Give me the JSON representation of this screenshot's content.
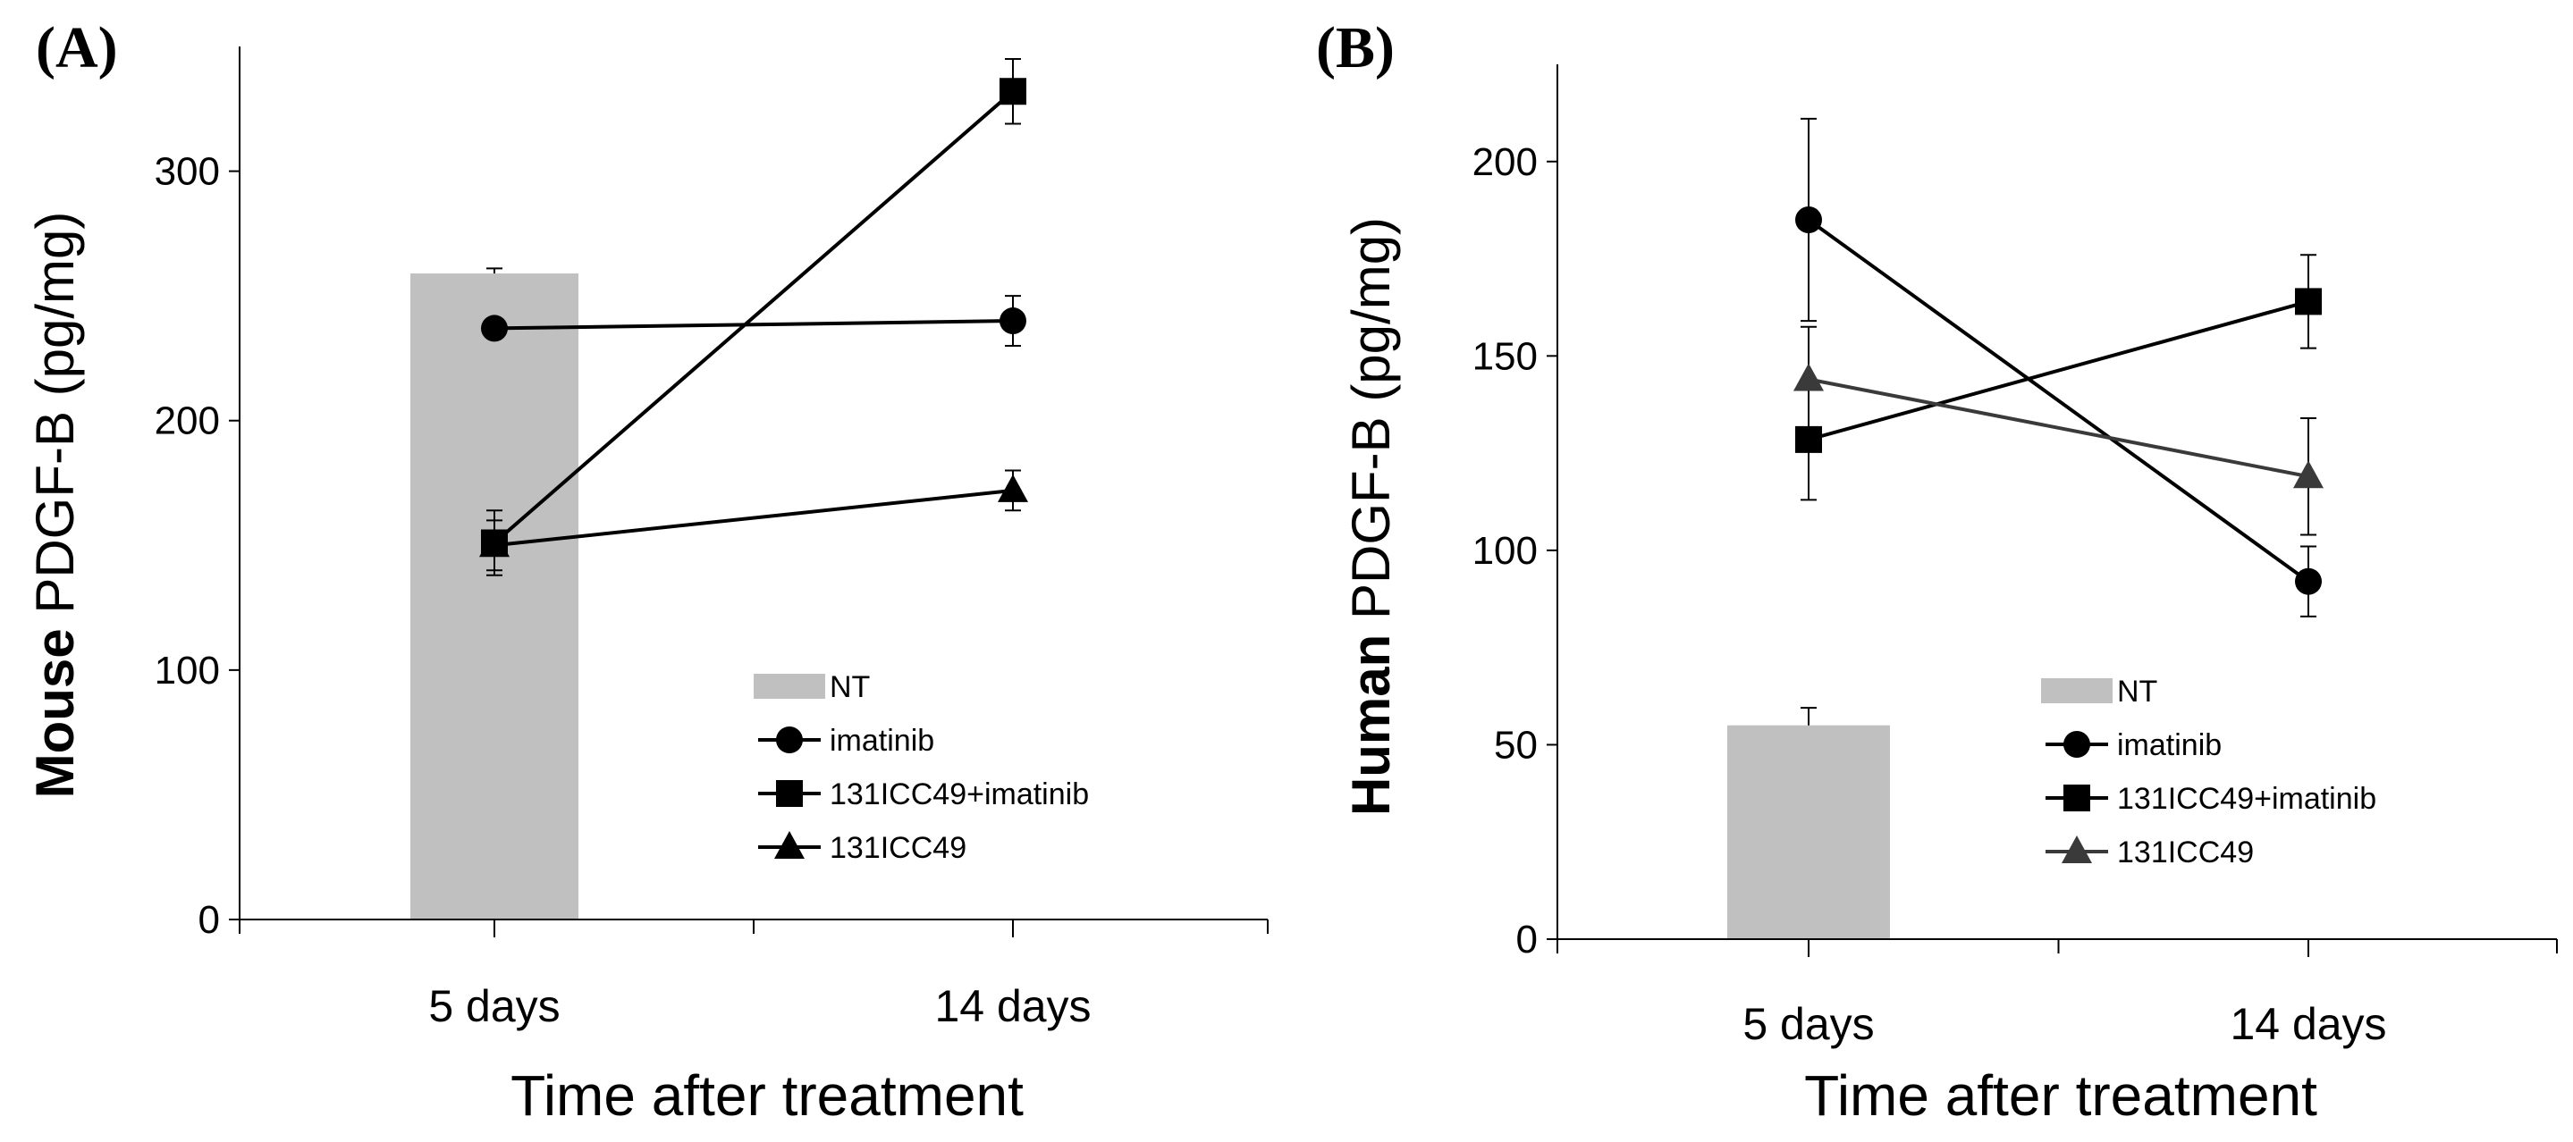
{
  "chart_data": [
    {
      "type": "line",
      "panel_label": "(A)",
      "title": "",
      "xlabel": "Time after treatment",
      "ylabel_bold": "Mouse",
      "ylabel_rest": " PDGF-B (pg/mg)",
      "categories": [
        "5 days",
        "14 days"
      ],
      "ylim": [
        0,
        350
      ],
      "yticks": [
        0,
        100,
        200,
        300
      ],
      "bar": {
        "name": "NT",
        "category": "5 days",
        "value": 259,
        "error": 2,
        "color": "#c0c0c0"
      },
      "series": [
        {
          "name": "imatinib",
          "marker": "circle",
          "color": "#000000",
          "values": [
            237,
            240
          ],
          "errors": [
            3,
            10
          ]
        },
        {
          "name": "131ICC49+imatinib",
          "marker": "square",
          "color": "#000000",
          "values": [
            151,
            332
          ],
          "errors": [
            13,
            13
          ]
        },
        {
          "name": "131ICC49",
          "marker": "triangle",
          "color": "#000000",
          "values": [
            150,
            172
          ],
          "errors": [
            10,
            8
          ]
        }
      ],
      "legend": [
        "NT",
        "imatinib",
        "131ICC49+imatinib",
        "131ICC49"
      ],
      "legend_position": "bottom-right"
    },
    {
      "type": "line",
      "panel_label": "(B)",
      "title": "",
      "xlabel": "Time after treatment",
      "ylabel_bold": "Human",
      "ylabel_rest": " PDGF-B (pg/mg)",
      "categories": [
        "5 days",
        "14 days"
      ],
      "ylim": [
        0,
        225
      ],
      "yticks": [
        0,
        50,
        100,
        150,
        200
      ],
      "bar": {
        "name": "NT",
        "category": "5 days",
        "value": 55,
        "error": 4.5,
        "color": "#c0c0c0"
      },
      "series": [
        {
          "name": "imatinib",
          "marker": "circle",
          "color": "#000000",
          "values": [
            185,
            92
          ],
          "errors": [
            26,
            9
          ]
        },
        {
          "name": "131ICC49+imatinib",
          "marker": "square",
          "color": "#000000",
          "values": [
            128.5,
            164
          ],
          "errors": [
            15.5,
            12
          ]
        },
        {
          "name": "131ICC49",
          "marker": "triangle",
          "color": "#3a3a3a",
          "values": [
            144,
            119
          ],
          "errors": [
            13.5,
            15
          ]
        }
      ],
      "legend": [
        "NT",
        "imatinib",
        "131ICC49+imatinib",
        "131ICC49"
      ],
      "legend_position": "bottom-right"
    }
  ]
}
